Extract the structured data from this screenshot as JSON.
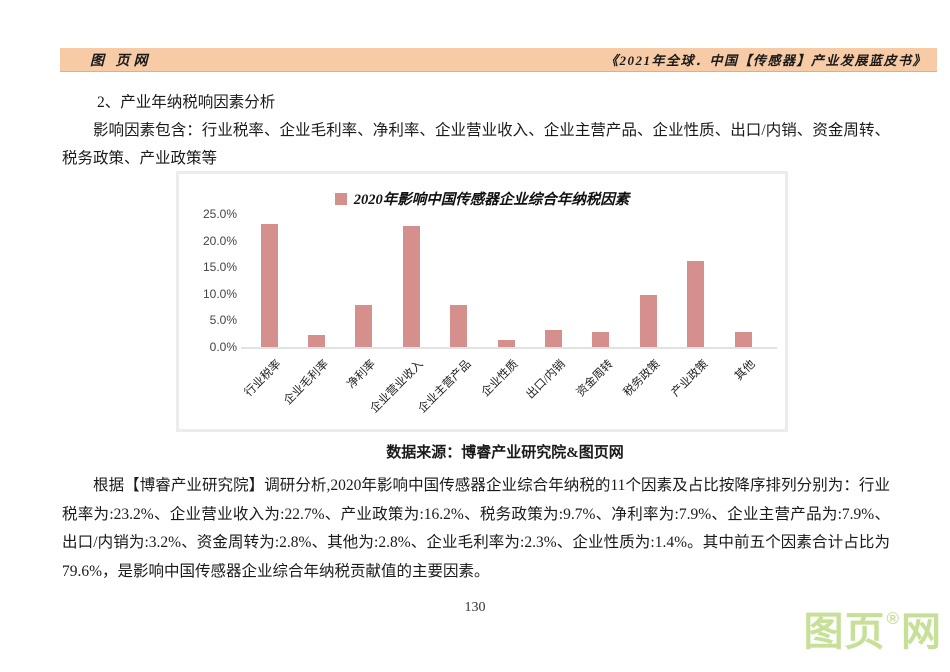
{
  "header": {
    "site": "图 页网",
    "book": "《2021年全球．中国【传感器】产业发展蓝皮书》"
  },
  "section": {
    "title": "2、产业年纳税响因素分析",
    "intro": "影响因素包含：行业税率、企业毛利率、净利率、企业营业收入、企业主营产品、企业性质、出口/内销、资金周转、税务政策、产业政策等"
  },
  "chart_data": {
    "type": "bar",
    "title": "2020年影响中国传感器企业综合年纳税因素",
    "categories": [
      "行业税率",
      "企业毛利率",
      "净利率",
      "企业营业收入",
      "企业主营产品",
      "企业性质",
      "出口/内销",
      "资金周转",
      "税务政策",
      "产业政策",
      "其他"
    ],
    "values": [
      23.2,
      2.3,
      7.9,
      22.7,
      7.9,
      1.4,
      3.2,
      2.8,
      9.7,
      16.2,
      2.8
    ],
    "unit": "%",
    "ylim": [
      0,
      25
    ],
    "ytick_labels": [
      "0.0%",
      "5.0%",
      "10.0%",
      "15.0%",
      "20.0%",
      "25.0%"
    ],
    "grid": false,
    "legend_position": "top",
    "bar_color": "#D5908E"
  },
  "source_line": "数据来源：博睿产业研究院&图页网",
  "analysis": "根据【博睿产业研究院】调研分析,2020年影响中国传感器企业综合年纳税的11个因素及占比按降序排列分别为：行业税率为:23.2%、企业营业收入为:22.7%、产业政策为:16.2%、税务政策为:9.7%、净利率为:7.9%、企业主营产品为:7.9%、出口/内销为:3.2%、资金周转为:2.8%、其他为:2.8%、企业毛利率为:2.3%、企业性质为:1.4%。其中前五个因素合计占比为79.6%，是影响中国传感器企业综合年纳税贡献值的主要因素。",
  "page_number": "130",
  "watermark": {
    "left": "图页",
    "reg": "®",
    "right": "网",
    "color": "#C7E098"
  },
  "colors": {
    "band": "#F6CBA6",
    "bar": "#D5908E",
    "chart_border": "#ECECEC"
  }
}
